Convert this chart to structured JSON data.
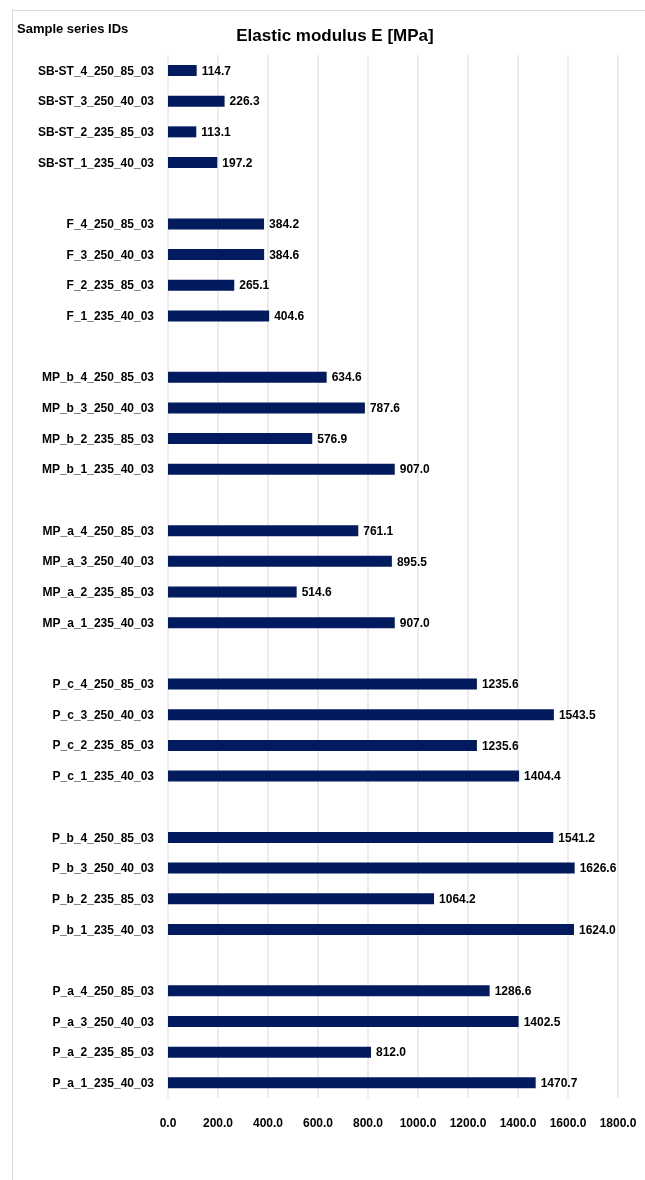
{
  "chart_data": {
    "type": "bar",
    "orientation": "horizontal",
    "title": "Elastic modulus E [MPa]",
    "ylabel": "Sample series IDs",
    "categories": [
      "SB-ST_4_250_85_03",
      "SB-ST_3_250_40_03",
      "SB-ST_2_235_85_03",
      "SB-ST_1_235_40_03",
      null,
      "F_4_250_85_03",
      "F_3_250_40_03",
      "F_2_235_85_03",
      "F_1_235_40_03",
      null,
      "MP_b_4_250_85_03",
      "MP_b_3_250_40_03",
      "MP_b_2_235_85_03",
      "MP_b_1_235_40_03",
      null,
      "MP_a_4_250_85_03",
      "MP_a_3_250_40_03",
      "MP_a_2_235_85_03",
      "MP_a_1_235_40_03",
      null,
      "P_c_4_250_85_03",
      "P_c_3_250_40_03",
      "P_c_2_235_85_03",
      "P_c_1_235_40_03",
      null,
      "P_b_4_250_85_03",
      "P_b_3_250_40_03",
      "P_b_2_235_85_03",
      "P_b_1_235_40_03",
      null,
      "P_a_4_250_85_03",
      "P_a_3_250_40_03",
      "P_a_2_235_85_03",
      "P_a_1_235_40_03"
    ],
    "values": [
      114.7,
      226.3,
      113.1,
      197.2,
      null,
      384.2,
      384.6,
      265.1,
      404.6,
      null,
      634.6,
      787.6,
      576.9,
      907.0,
      null,
      761.1,
      895.5,
      514.6,
      907.0,
      null,
      1235.6,
      1543.5,
      1235.6,
      1404.4,
      null,
      1541.2,
      1626.6,
      1064.2,
      1624.0,
      null,
      1286.6,
      1402.5,
      812.0,
      1470.7
    ],
    "value_labels": [
      "114.7",
      "226.3",
      "113.1",
      "197.2",
      null,
      "384.2",
      "384.6",
      "265.1",
      "404.6",
      null,
      "634.6",
      "787.6",
      "576.9",
      "907.0",
      null,
      "761.1",
      "895.5",
      "514.6",
      "907.0",
      null,
      "1235.6",
      "1543.5",
      "1235.6",
      "1404.4",
      null,
      "1541.2",
      "1626.6",
      "1064.2",
      "1624.0",
      null,
      "1286.6",
      "1402.5",
      "812.0",
      "1470.7"
    ],
    "color": "#021a5e",
    "xlim": [
      0,
      1800
    ],
    "xticks": [
      {
        "value": 0,
        "label": "0.0"
      },
      {
        "value": 200,
        "label": "200.0"
      },
      {
        "value": 400,
        "label": "400.0"
      },
      {
        "value": 600,
        "label": "600.0"
      },
      {
        "value": 800,
        "label": "800.0"
      },
      {
        "value": 1000,
        "label": "1000.0"
      },
      {
        "value": 1200,
        "label": "1200.0"
      },
      {
        "value": 1400,
        "label": "1400.0"
      },
      {
        "value": 1600,
        "label": "1600.0"
      },
      {
        "value": 1800,
        "label": "1800.0"
      }
    ],
    "grid": "x"
  }
}
